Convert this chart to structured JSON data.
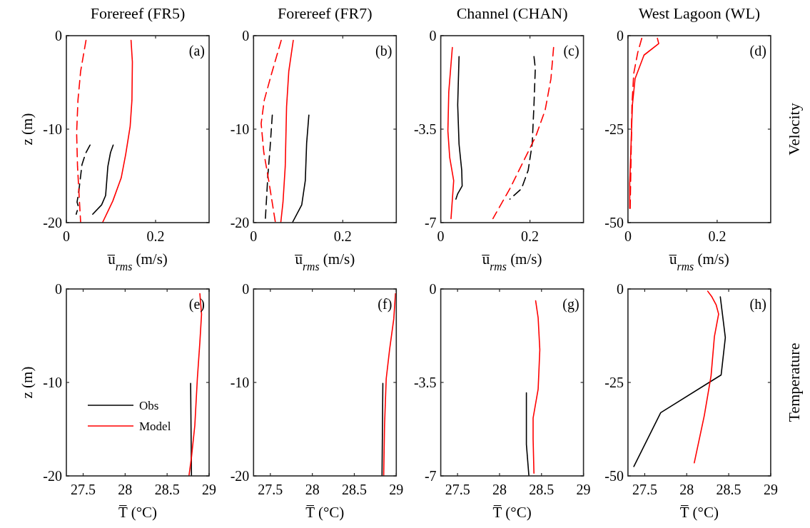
{
  "chart_data": [
    {
      "type": "line",
      "title": "Forereef (FR5)",
      "xlabel": "u̅$_{rms}$ (m/s)",
      "ylabel": "z (m)",
      "xlim": [
        0,
        0.32
      ],
      "xticks": [
        0,
        0.2
      ],
      "ylim": [
        -20,
        0
      ],
      "yticks": [
        -20,
        -10,
        0
      ],
      "annotations": [
        "(a)"
      ],
      "series": [
        {
          "color": "#000000",
          "line_style": "solid",
          "x": [
            0.105,
            0.099,
            0.093,
            0.088,
            0.079,
            0.059
          ],
          "values": [
            -11.7,
            -12.5,
            -14,
            -17.1,
            -18.1,
            -19.1
          ]
        },
        {
          "color": "#000000",
          "line_style": "dashed",
          "x": [
            0.053,
            0.043,
            0.035,
            0.032,
            0.028,
            0.024,
            0.027,
            0.022
          ],
          "values": [
            -11.7,
            -12.6,
            -13.8,
            -15,
            -16.6,
            -17.8,
            -18.3,
            -19.1
          ]
        },
        {
          "color": "#ff0000",
          "line_style": "solid",
          "x": [
            0.145,
            0.148,
            0.147,
            0.143,
            0.133,
            0.123,
            0.104,
            0.081
          ],
          "values": [
            -0.5,
            -2.8,
            -6.9,
            -9.7,
            -12.7,
            -15.2,
            -17.7,
            -20
          ]
        },
        {
          "color": "#ff0000",
          "line_style": "dashed",
          "x": [
            0.044,
            0.032,
            0.026,
            0.023,
            0.025,
            0.028,
            0.032
          ],
          "values": [
            -0.5,
            -3.8,
            -6.9,
            -10.4,
            -14,
            -16.6,
            -20
          ]
        }
      ]
    },
    {
      "type": "line",
      "title": "Forereef (FR7)",
      "xlabel": "u̅$_{rms}$ (m/s)",
      "xlim": [
        0,
        0.32
      ],
      "xticks": [
        0,
        0.2
      ],
      "ylim": [
        -20,
        0
      ],
      "yticks": [
        -20,
        -10,
        0
      ],
      "annotations": [
        "(b)"
      ],
      "series": [
        {
          "color": "#000000",
          "line_style": "solid",
          "x": [
            0.124,
            0.119,
            0.116,
            0.108,
            0.087
          ],
          "values": [
            -8.5,
            -11.5,
            -15.5,
            -18.1,
            -20
          ]
        },
        {
          "color": "#000000",
          "line_style": "dashed",
          "x": [
            0.042,
            0.037,
            0.032,
            0.026
          ],
          "values": [
            -8.5,
            -12,
            -15,
            -20
          ]
        },
        {
          "color": "#ff0000",
          "line_style": "solid",
          "x": [
            0.089,
            0.079,
            0.074,
            0.071,
            0.066,
            0.061
          ],
          "values": [
            -0.5,
            -3.8,
            -7.6,
            -14,
            -17.8,
            -20
          ]
        },
        {
          "color": "#ff0000",
          "line_style": "dashed",
          "x": [
            0.062,
            0.039,
            0.024,
            0.017,
            0.023,
            0.034,
            0.049
          ],
          "values": [
            -0.5,
            -4.3,
            -6.9,
            -9.4,
            -12.5,
            -15.5,
            -20
          ]
        }
      ]
    },
    {
      "type": "line",
      "title": "Channel (CHAN)",
      "xlabel": "u̅$_{rms}$ (m/s)",
      "xlim": [
        0,
        0.32
      ],
      "xticks": [
        0,
        0.2
      ],
      "ylim": [
        -7,
        0
      ],
      "yticks": [
        -7,
        -3.5,
        0
      ],
      "annotations": [
        "(c)"
      ],
      "series": [
        {
          "color": "#000000",
          "line_style": "solid",
          "x": [
            0.041,
            0.038,
            0.041,
            0.047,
            0.048,
            0.038,
            0.034
          ],
          "values": [
            -0.78,
            -2.59,
            -4.06,
            -5.04,
            -5.63,
            -5.92,
            -6.12
          ]
        },
        {
          "color": "#000000",
          "line_style": "dashed",
          "x": [
            0.209,
            0.212,
            0.209,
            0.205,
            0.196,
            0.181,
            0.155
          ],
          "values": [
            -0.78,
            -1.22,
            -2.59,
            -4.06,
            -5.04,
            -5.73,
            -6.12
          ]
        },
        {
          "color": "#ff0000",
          "line_style": "solid",
          "x": [
            0.026,
            0.018,
            0.016,
            0.02,
            0.029,
            0.023
          ],
          "values": [
            -0.44,
            -2.1,
            -3.57,
            -4.55,
            -5.43,
            -6.85
          ]
        },
        {
          "color": "#ff0000",
          "line_style": "dashed",
          "x": [
            0.253,
            0.247,
            0.234,
            0.213,
            0.184,
            0.155,
            0.117
          ],
          "values": [
            -0.44,
            -1.62,
            -2.79,
            -3.77,
            -4.75,
            -5.73,
            -6.85
          ]
        }
      ]
    },
    {
      "type": "line",
      "title": "West Lagoon (WL)",
      "xlabel": "u̅$_{rms}$ (m/s)",
      "xlim": [
        0,
        0.32
      ],
      "xticks": [
        0,
        0.2
      ],
      "ylim": [
        -50,
        0
      ],
      "yticks": [
        -50,
        -25,
        0
      ],
      "annotations": [
        "(d)",
        "Velocity"
      ],
      "series": [
        {
          "color": "#ff0000",
          "line_style": "solid",
          "x": [
            0.066,
            0.069,
            0.036,
            0.016,
            0.01,
            0.007,
            0.004,
            0.004
          ],
          "values": [
            -0.7,
            -2.1,
            -5.2,
            -11.5,
            -18.5,
            -29,
            -39.5,
            -46.2
          ]
        },
        {
          "color": "#ff0000",
          "line_style": "dashed",
          "x": [
            0.031,
            0.022,
            0.013,
            0.009,
            0.007,
            0.005
          ],
          "values": [
            -0.7,
            -4.5,
            -10.1,
            -18.5,
            -32.5,
            -46.2
          ]
        }
      ]
    },
    {
      "type": "line",
      "xlabel": "T̅ (°C)",
      "ylabel": "z (m)",
      "xlim": [
        27.3,
        29
      ],
      "xticks": [
        27.5,
        28,
        28.5,
        29
      ],
      "ylim": [
        -20,
        0
      ],
      "yticks": [
        -20,
        -10,
        0
      ],
      "annotations": [
        "(e)"
      ],
      "legend": "bottom left",
      "series": [
        {
          "name": "Obs",
          "color": "#000000",
          "line_style": "solid",
          "x": [
            28.78,
            28.79
          ],
          "values": [
            -10.1,
            -20
          ]
        },
        {
          "name": "Model",
          "color": "#ff0000",
          "line_style": "solid",
          "x": [
            28.89,
            28.91,
            28.89,
            28.86,
            28.83,
            28.79,
            28.76
          ],
          "values": [
            -0.5,
            -2.7,
            -5.7,
            -9.6,
            -14.6,
            -18,
            -20
          ]
        }
      ]
    },
    {
      "type": "line",
      "xlabel": "T̅ (°C)",
      "xlim": [
        27.3,
        29
      ],
      "xticks": [
        27.5,
        28,
        28.5,
        29
      ],
      "ylim": [
        -20,
        0
      ],
      "yticks": [
        -20,
        -10,
        0
      ],
      "annotations": [
        "(f)"
      ],
      "series": [
        {
          "color": "#000000",
          "line_style": "solid",
          "x": [
            28.84,
            28.83
          ],
          "values": [
            -10.1,
            -20
          ]
        },
        {
          "color": "#ff0000",
          "line_style": "solid",
          "x": [
            28.99,
            28.97,
            28.92,
            28.88,
            28.86,
            28.85
          ],
          "values": [
            -0.5,
            -3.2,
            -6.5,
            -9.6,
            -14.6,
            -20
          ]
        }
      ]
    },
    {
      "type": "line",
      "xlabel": "T̅ (°C)",
      "xlim": [
        27.3,
        29
      ],
      "xticks": [
        27.5,
        28,
        28.5,
        29
      ],
      "ylim": [
        -7,
        0
      ],
      "yticks": [
        -7,
        -3.5,
        0
      ],
      "annotations": [
        "(g)"
      ],
      "series": [
        {
          "color": "#000000",
          "line_style": "solid",
          "x": [
            28.32,
            28.32,
            28.35
          ],
          "values": [
            -3.89,
            -5.82,
            -7
          ]
        },
        {
          "color": "#ff0000",
          "line_style": "solid",
          "x": [
            28.43,
            28.46,
            28.48,
            28.46,
            28.4,
            28.4,
            28.41
          ],
          "values": [
            -0.44,
            -1.08,
            -2.27,
            -3.75,
            -4.83,
            -5.62,
            -6.9
          ]
        }
      ]
    },
    {
      "type": "line",
      "xlabel": "T̅ (°C)",
      "xlim": [
        27.3,
        29
      ],
      "xticks": [
        27.5,
        28,
        28.5,
        29
      ],
      "ylim": [
        -50,
        0
      ],
      "yticks": [
        -50,
        -25,
        0
      ],
      "annotations": [
        "(h)",
        "Temperature"
      ],
      "series": [
        {
          "color": "#000000",
          "line_style": "solid",
          "x": [
            28.4,
            28.46,
            28.41,
            27.69,
            27.37
          ],
          "values": [
            -2.1,
            -13,
            -23,
            -33.1,
            -47.5
          ]
        },
        {
          "color": "#ff0000",
          "line_style": "solid",
          "x": [
            28.25,
            28.3,
            28.35,
            28.38,
            28.33,
            28.29,
            28.21,
            28.09
          ],
          "values": [
            -0.6,
            -2.1,
            -4.2,
            -6.7,
            -12.7,
            -23.2,
            -33.8,
            -46.5
          ]
        }
      ]
    }
  ]
}
